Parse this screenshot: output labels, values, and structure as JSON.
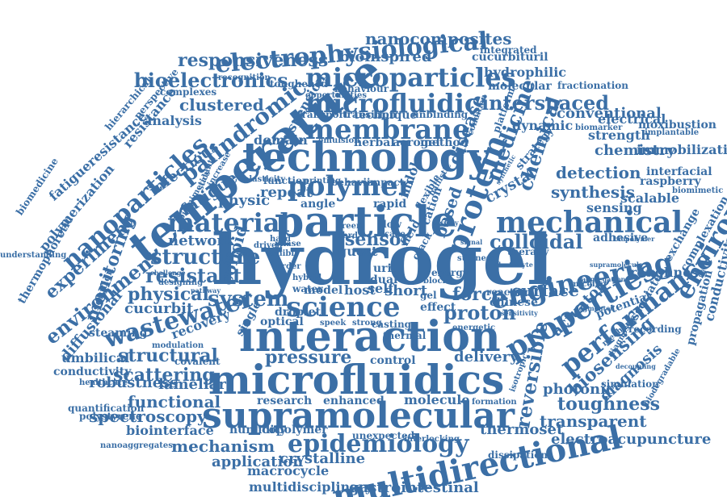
{
  "accent_color": "#3b6fa6",
  "words": [
    "hydrogel",
    "technology",
    "particle",
    "microfluidics",
    "interaction",
    "supramolecular",
    "temperature",
    "membrane",
    "polymer",
    "mechanical",
    "science",
    "multidirectional",
    "material",
    "protein",
    "microfluidic",
    "microparticles",
    "electrophysiological",
    "engineering",
    "properties",
    "epidemiology",
    "performance",
    "nanoparticles",
    "wastewater",
    "responsiveness",
    "environmental",
    "bioelectronics",
    "palindromic",
    "experiment",
    "structure",
    "nanocomposites",
    "structural",
    "resistant",
    "physical",
    "system",
    "colloidal",
    "sensor",
    "interspaced",
    "reversible",
    "medicine",
    "chemical",
    "environment",
    "force",
    "proton",
    "surface",
    "biosensing",
    "spectroscopy",
    "scattering",
    "mechanism",
    "pressure",
    "functional",
    "toughness",
    "clustered",
    "infectious",
    "fatigue",
    "bioinspired",
    "hydrophilic",
    "cucurbituril",
    "conventional",
    "dynamic",
    "detection",
    "synthesis",
    "sensing",
    "chemistry",
    "strength",
    "immobilization",
    "moxibustion",
    "electrical",
    "transparent",
    "electroacupuncture",
    "photonic",
    "diagnosis",
    "actuator",
    "thermoset",
    "crystalline",
    "macrocycle",
    "application",
    "multidisciplinary",
    "gastrointestinal",
    "copolymer",
    "humidity",
    "biointerface",
    "robustness",
    "lamellar",
    "conductivity",
    "umbilical",
    "cucurbit",
    "monitoring",
    "diffusional",
    "polymerization",
    "fatigueresistance",
    "biomedicine",
    "thermophoretic",
    "network",
    "repeat",
    "domain",
    "physic",
    "analysis",
    "complexes",
    "molecular",
    "fractionation",
    "delivery",
    "molecule",
    "research",
    "enhanced",
    "control",
    "colloid",
    "recovery",
    "steaming",
    "solution",
    "single",
    "optical",
    "droplet",
    "water",
    "host",
    "self",
    "short",
    "model",
    "hybrid",
    "guest",
    "angle",
    "rapid",
    "indole",
    "cation",
    "crystal",
    "based",
    "disease",
    "strategy",
    "biomarker",
    "implantable",
    "interfacial",
    "raspberry",
    "scalable",
    "adhesive",
    "therapy",
    "roughness",
    "exchange",
    "complexation",
    "conductivitycucurbit",
    "propagation",
    "associated",
    "potential",
    "chinese",
    "reaction",
    "recording",
    "diagnostic",
    "simulation",
    "aerogel",
    "method",
    "herbal",
    "emulsion",
    "technique",
    "transport",
    "transition",
    "unbinding",
    "condition",
    "behaviour",
    "toughened",
    "recognition",
    "integrated",
    "opportunities",
    "suspension",
    "resistance",
    "hierarchical",
    "perspective",
    "polystyrene",
    "quantification",
    "nanoaggregates",
    "unexpected",
    "interlocking",
    "dissipation",
    "formation",
    "isotropic",
    "biodegradable",
    "understanding",
    "healthcare",
    "modulation",
    "covalent",
    "exhibit",
    "energetic",
    "printing",
    "behavior",
    "impact",
    "function",
    "elasticity",
    "biomimetic",
    "stability",
    "increase",
    "biomimetics",
    "mechanic",
    "micellar",
    "decoupling",
    "supramolecule",
    "aggregation",
    "segmented",
    "platform",
    "flow",
    "casting",
    "speek",
    "strong",
    "thermal",
    "effect",
    "gel",
    "field",
    "crack",
    "energy",
    "uril",
    "dual",
    "flexible",
    "ballistic",
    "block",
    "display",
    "signal",
    "cage",
    "green",
    "cord",
    "order",
    "pathway",
    "challenge",
    "biopolymer",
    "sensitivity",
    "stiffness",
    "electrolyte",
    "driven",
    "hard",
    "phase",
    "designing",
    "synthetic"
  ]
}
